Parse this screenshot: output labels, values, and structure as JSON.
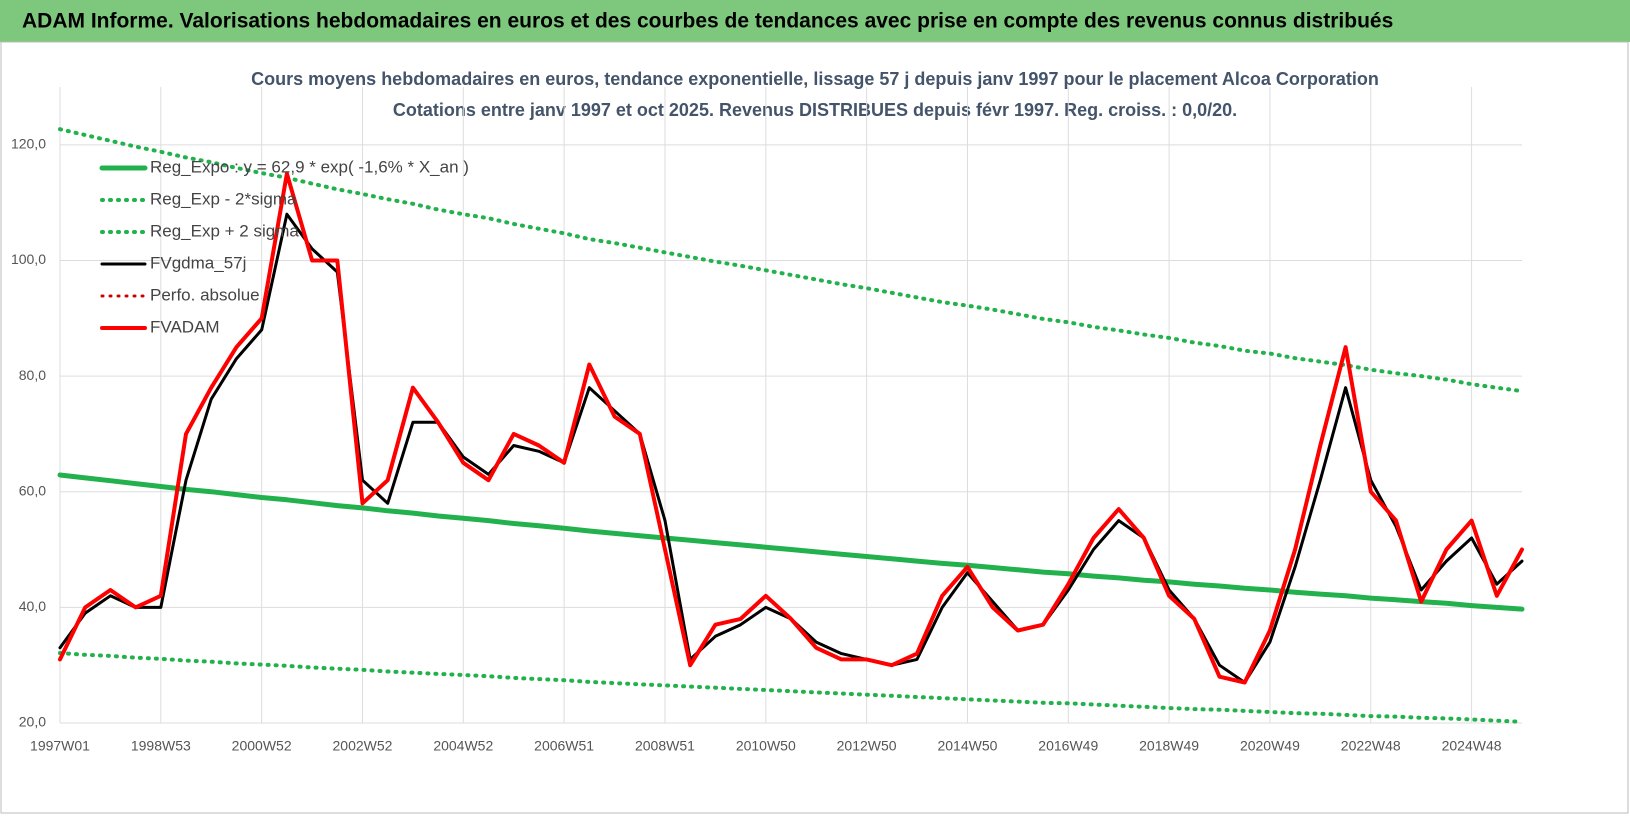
{
  "header": {
    "title": "ADAM Informe. Valorisations hebdomadaires en euros et des courbes de tendances avec prise en compte des revenus connus distribués"
  },
  "chart_data": {
    "type": "line",
    "title": [
      "Cours moyens hebdomadaires en euros, tendance exponentielle, lissage 57 j depuis janv 1997 pour le placement Alcoa Corporation",
      "Cotations entre janv 1997 et oct 2025. Revenus DISTRIBUES depuis févr 1997. Reg. croiss. : 0,0/20."
    ],
    "categories": [
      "1997W01",
      null,
      null,
      null,
      "1998W53",
      null,
      null,
      null,
      "2000W52",
      null,
      null,
      null,
      "2002W52",
      null,
      null,
      null,
      "2004W52",
      null,
      null,
      null,
      "2006W51",
      null,
      null,
      null,
      "2008W51",
      null,
      null,
      null,
      "2010W50",
      null,
      null,
      null,
      "2012W50",
      null,
      null,
      null,
      "2014W50",
      null,
      null,
      null,
      "2016W49",
      null,
      null,
      null,
      "2018W49",
      null,
      null,
      null,
      "2020W49",
      null,
      null,
      null,
      "2022W48",
      null,
      null,
      null,
      "2024W48",
      null,
      null
    ],
    "ylim": [
      20,
      130
    ],
    "yticks": [
      {
        "value": 20,
        "label": "20,0"
      },
      {
        "value": 40,
        "label": "40,0"
      },
      {
        "value": 60,
        "label": "60,0"
      },
      {
        "value": 80,
        "label": "80,0"
      },
      {
        "value": 100,
        "label": "100,0"
      },
      {
        "value": 120,
        "label": "120,0"
      }
    ],
    "grid": true,
    "legend": "top-left",
    "series": [
      {
        "name": "Reg_Expo : y = 62,9 * exp( -1,6% *  X_an )",
        "color": "#22b14c",
        "style": "solid",
        "width": 5,
        "values": [
          62.9,
          62.4,
          61.9,
          61.4,
          60.9,
          60.4,
          60.0,
          59.5,
          59.0,
          58.6,
          58.1,
          57.6,
          57.2,
          56.7,
          56.3,
          55.8,
          55.4,
          55.0,
          54.5,
          54.1,
          53.7,
          53.2,
          52.8,
          52.4,
          52.0,
          51.6,
          51.2,
          50.8,
          50.4,
          50.0,
          49.6,
          49.2,
          48.8,
          48.4,
          48.0,
          47.6,
          47.3,
          46.9,
          46.5,
          46.1,
          45.8,
          45.4,
          45.1,
          44.7,
          44.4,
          44.0,
          43.7,
          43.3,
          43.0,
          42.6,
          42.3,
          42.0,
          41.6,
          41.3,
          41.0,
          40.7,
          40.3,
          40.0,
          39.7
        ]
      },
      {
        "name": "Reg_Exp - 2*sigma",
        "color": "#22b14c",
        "style": "dotted",
        "width": 4,
        "values": [
          32.1,
          31.8,
          31.6,
          31.3,
          31.1,
          30.8,
          30.6,
          30.3,
          30.1,
          29.9,
          29.6,
          29.4,
          29.2,
          28.9,
          28.7,
          28.5,
          28.3,
          28.1,
          27.8,
          27.6,
          27.4,
          27.1,
          26.9,
          26.7,
          26.5,
          26.3,
          26.1,
          25.9,
          25.7,
          25.5,
          25.3,
          25.1,
          24.9,
          24.7,
          24.5,
          24.3,
          24.1,
          23.9,
          23.7,
          23.5,
          23.4,
          23.2,
          23.0,
          22.8,
          22.6,
          22.4,
          22.3,
          22.1,
          21.9,
          21.7,
          21.6,
          21.4,
          21.2,
          21.1,
          20.9,
          20.8,
          20.6,
          20.4,
          20.2
        ]
      },
      {
        "name": "Reg_Exp + 2 sigma",
        "color": "#22b14c",
        "style": "dotted",
        "width": 4,
        "values": [
          122.7,
          121.7,
          120.7,
          119.7,
          118.8,
          117.8,
          117.0,
          116.0,
          115.1,
          114.3,
          113.3,
          112.3,
          111.5,
          110.6,
          109.8,
          108.8,
          108.0,
          107.3,
          106.3,
          105.5,
          104.7,
          103.7,
          103.0,
          102.2,
          101.4,
          100.6,
          99.8,
          99.1,
          98.3,
          97.5,
          96.7,
          95.9,
          95.2,
          94.4,
          93.6,
          92.8,
          92.2,
          91.5,
          90.7,
          89.9,
          89.3,
          88.5,
          87.9,
          87.2,
          86.6,
          85.8,
          85.2,
          84.4,
          83.9,
          83.1,
          82.5,
          81.9,
          81.1,
          80.5,
          80.0,
          79.4,
          78.6,
          78.0,
          77.4
        ]
      },
      {
        "name": "FVgdma_57j",
        "color": "#000000",
        "style": "solid",
        "width": 3,
        "values": [
          33,
          39,
          42,
          40,
          40,
          62,
          76,
          83,
          88,
          108,
          102,
          98,
          62,
          58,
          72,
          72,
          66,
          63,
          68,
          67,
          65,
          78,
          74,
          70,
          55,
          31,
          35,
          37,
          40,
          38,
          34,
          32,
          31,
          30,
          31,
          40,
          46,
          41,
          36,
          37,
          43,
          50,
          55,
          52,
          43,
          38,
          30,
          27,
          34,
          47,
          62,
          78,
          62,
          54,
          43,
          48,
          52,
          44,
          48
        ]
      },
      {
        "name": "Perfo. absolue",
        "color": "#d00000",
        "style": "dotted",
        "width": 3,
        "values": [
          31,
          40,
          43,
          40,
          42,
          70,
          78,
          85,
          90,
          115,
          100,
          100,
          58,
          62,
          78,
          72,
          65,
          62,
          70,
          68,
          65,
          82,
          73,
          70,
          50,
          30,
          37,
          38,
          42,
          38,
          33,
          31,
          31,
          30,
          32,
          42,
          47,
          40,
          36,
          37,
          44,
          52,
          57,
          52,
          42,
          38,
          28,
          27,
          36,
          50,
          68,
          85,
          60,
          55,
          41,
          50,
          55,
          42,
          50
        ]
      },
      {
        "name": "FVADAM",
        "color": "#ff0000",
        "style": "solid",
        "width": 4,
        "values": [
          31,
          40,
          43,
          40,
          42,
          70,
          78,
          85,
          90,
          115,
          100,
          100,
          58,
          62,
          78,
          72,
          65,
          62,
          70,
          68,
          65,
          82,
          73,
          70,
          50,
          30,
          37,
          38,
          42,
          38,
          33,
          31,
          31,
          30,
          32,
          42,
          47,
          40,
          36,
          37,
          44,
          52,
          57,
          52,
          42,
          38,
          28,
          27,
          36,
          50,
          68,
          85,
          60,
          55,
          41,
          50,
          55,
          42,
          50
        ]
      }
    ]
  }
}
